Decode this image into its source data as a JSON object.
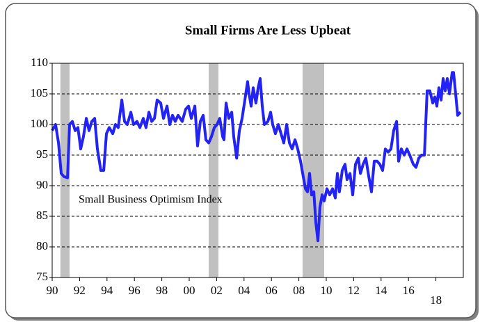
{
  "chart_data": {
    "type": "line",
    "title": "Small Firms Are Less Upbeat",
    "annotation": "Small Business Optimism Index",
    "color": "#2323f5",
    "shading_color": "#c0c0c0",
    "shading": [
      {
        "start": 1990.6,
        "end": 1991.27
      },
      {
        "start": 2001.42,
        "end": 2002.13
      },
      {
        "start": 2008.27,
        "end": 2009.85
      }
    ],
    "xlim": [
      1990,
      2020
    ],
    "xticks": [
      {
        "value": 1990,
        "label": "90"
      },
      {
        "value": 1992,
        "label": "92"
      },
      {
        "value": 1994,
        "label": "94"
      },
      {
        "value": 1996,
        "label": "96"
      },
      {
        "value": 1998,
        "label": "98"
      },
      {
        "value": 2000,
        "label": "00"
      },
      {
        "value": 2002,
        "label": "02"
      },
      {
        "value": 2004,
        "label": "04"
      },
      {
        "value": 2006,
        "label": "06"
      },
      {
        "value": 2008,
        "label": "08"
      },
      {
        "value": 2010,
        "label": "10"
      },
      {
        "value": 2012,
        "label": "12"
      },
      {
        "value": 2014,
        "label": "14"
      },
      {
        "value": 2016,
        "label": "16"
      },
      {
        "value": 2018,
        "label": "18"
      }
    ],
    "ylim": [
      75,
      110
    ],
    "yticks": [
      75,
      80,
      85,
      90,
      95,
      100,
      105,
      110
    ],
    "grid": true,
    "x": [
      1990.0,
      1990.25,
      1990.46,
      1990.66,
      1990.86,
      1991.12,
      1991.27,
      1991.47,
      1991.68,
      1991.88,
      1992.08,
      1992.28,
      1992.49,
      1992.69,
      1992.89,
      1993.1,
      1993.3,
      1993.55,
      1993.76,
      1993.96,
      1994.16,
      1994.42,
      1994.62,
      1994.82,
      1995.08,
      1995.28,
      1995.48,
      1995.74,
      1995.94,
      1996.19,
      1996.4,
      1996.65,
      1996.85,
      1997.06,
      1997.26,
      1997.46,
      1997.66,
      1997.92,
      1998.12,
      1998.38,
      1998.58,
      1998.78,
      1998.98,
      1999.19,
      1999.49,
      1999.74,
      1999.95,
      2000.15,
      2000.41,
      2000.61,
      2000.81,
      2001.02,
      2001.22,
      2001.42,
      2001.62,
      2001.83,
      2002.03,
      2002.23,
      2002.44,
      2002.54,
      2002.69,
      2002.89,
      2003.1,
      2003.25,
      2003.46,
      2003.66,
      2003.86,
      2004.06,
      2004.26,
      2004.37,
      2004.52,
      2004.67,
      2004.87,
      2005.03,
      2005.18,
      2005.33,
      2005.48,
      2005.74,
      2005.94,
      2006.09,
      2006.29,
      2006.5,
      2006.7,
      2006.9,
      2007.11,
      2007.31,
      2007.51,
      2007.72,
      2007.92,
      2008.12,
      2008.32,
      2008.48,
      2008.63,
      2008.78,
      2008.93,
      2009.09,
      2009.24,
      2009.39,
      2009.54,
      2009.7,
      2009.85,
      2010.05,
      2010.25,
      2010.46,
      2010.66,
      2010.81,
      2010.96,
      2011.17,
      2011.37,
      2011.52,
      2011.73,
      2011.93,
      2012.13,
      2012.34,
      2012.49,
      2012.69,
      2012.89,
      2013.1,
      2013.3,
      2013.5,
      2013.71,
      2013.91,
      2014.11,
      2014.31,
      2014.52,
      2014.72,
      2014.92,
      2015.13,
      2015.28,
      2015.48,
      2015.69,
      2015.89,
      2016.09,
      2016.35,
      2016.55,
      2016.75,
      2016.95,
      2017.16,
      2017.36,
      2017.56,
      2017.77,
      2017.92,
      2018.07,
      2018.22,
      2018.38,
      2018.53,
      2018.68,
      2018.83,
      2018.99,
      2019.19,
      2019.29,
      2019.44,
      2019.59,
      2019.79
    ],
    "values": [
      99,
      100,
      97,
      92,
      91.5,
      91.3,
      100,
      100.5,
      99,
      99.5,
      96,
      98,
      101,
      99,
      100.5,
      101,
      96,
      92.5,
      92.5,
      98.5,
      99.5,
      98.5,
      100,
      99.5,
      104,
      100.5,
      100,
      102,
      100,
      100.5,
      99.5,
      101,
      99.5,
      102,
      100.5,
      101,
      104,
      103.5,
      101,
      103,
      100,
      101.5,
      100.5,
      101.5,
      100.5,
      102.5,
      103,
      101,
      103,
      96.5,
      100.5,
      101.5,
      97.5,
      97,
      98,
      99.5,
      100,
      101,
      98,
      97.5,
      103.5,
      101,
      102,
      98,
      94.5,
      99,
      101,
      104,
      107,
      105,
      103,
      106,
      103.5,
      106,
      107.5,
      103,
      100,
      100.5,
      102,
      100,
      98.5,
      100,
      98.5,
      97,
      100,
      97,
      96,
      97.5,
      96,
      94,
      91.5,
      89.5,
      89,
      92,
      88.5,
      89,
      84,
      81,
      86.5,
      88.5,
      87.5,
      89.5,
      88.5,
      89.5,
      88,
      92,
      89,
      92.5,
      93.5,
      91,
      92,
      88.5,
      93.5,
      94.5,
      92,
      93.5,
      94.5,
      91.5,
      89,
      94,
      94,
      93.5,
      92.5,
      96,
      95.5,
      96,
      99,
      100.5,
      94,
      96,
      95,
      96,
      95,
      93.5,
      93,
      94.5,
      95,
      95,
      105.5,
      105.5,
      103.5,
      104.5,
      103,
      106,
      104,
      107.5,
      105.5,
      107.5,
      105,
      108.5,
      108.5,
      105,
      101.5,
      102
    ]
  }
}
